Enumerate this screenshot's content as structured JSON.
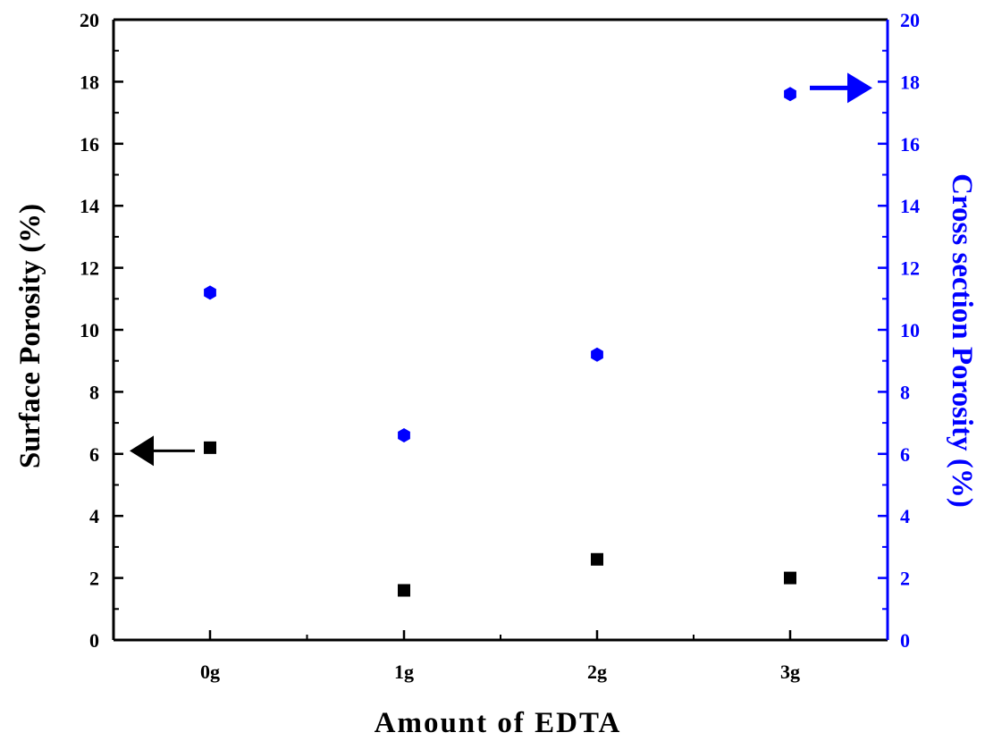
{
  "chart_data": {
    "type": "scatter",
    "categories": [
      "0g",
      "1g",
      "2g",
      "3g"
    ],
    "xlabel": "Amount of EDTA",
    "y_left": {
      "label": "Surface Porosity (%)",
      "ylim": [
        0,
        20
      ],
      "ticks": [
        0,
        2,
        4,
        6,
        8,
        10,
        12,
        14,
        16,
        18,
        20
      ],
      "color": "#000000"
    },
    "y_right": {
      "label": "Cross section Porosity (%)",
      "ylim": [
        0,
        20
      ],
      "ticks": [
        0,
        2,
        4,
        6,
        8,
        10,
        12,
        14,
        16,
        18,
        20
      ],
      "color": "#0000ff"
    },
    "series": [
      {
        "axis": "left",
        "marker": "square",
        "color": "#000000",
        "values": [
          6.2,
          1.6,
          2.6,
          2.0
        ]
      },
      {
        "axis": "right",
        "marker": "hexagon",
        "color": "#0000ff",
        "values": [
          11.2,
          6.6,
          9.2,
          17.6
        ]
      }
    ],
    "annotations": [
      {
        "type": "arrow",
        "direction": "left",
        "color": "#000000",
        "at_category": "0g",
        "y": 6.1,
        "axis": "left"
      },
      {
        "type": "arrow",
        "direction": "right",
        "color": "#0000ff",
        "at_category": "3g",
        "y": 17.8,
        "axis": "right"
      }
    ],
    "grid": false,
    "legend": "none"
  }
}
